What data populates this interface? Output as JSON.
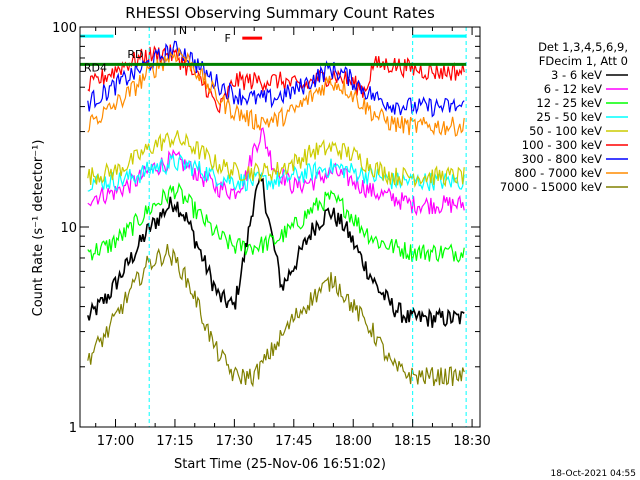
{
  "chart_data": {
    "type": "line",
    "title": "RHESSI Observing Summary Count Rates",
    "xlabel": "Start Time (25-Nov-06 16:51:02)",
    "ylabel": "Count Rate (s⁻¹ detector⁻¹)",
    "y_scale": "log",
    "ylim": [
      1,
      100
    ],
    "xlim": [
      "16:51:02",
      "18:32:00"
    ],
    "x_ticks": [
      "17:00",
      "17:15",
      "17:30",
      "17:45",
      "18:00",
      "18:15",
      "18:30"
    ],
    "y_ticks": [
      "1",
      "10",
      "100"
    ],
    "legend_header": [
      "Det 1,3,4,5,6,9,",
      "FDecim 1, Att 0"
    ],
    "legend_placement": "right",
    "series": [
      {
        "name": "3 - 6 keV",
        "color": "#000000",
        "x": [
          "16:53",
          "16:58",
          "17:03",
          "17:08",
          "17:13",
          "17:15",
          "17:18",
          "17:22",
          "17:26",
          "17:30",
          "17:33",
          "17:35",
          "17:37",
          "17:39",
          "17:42",
          "17:46",
          "17:50",
          "17:54",
          "17:58",
          "18:02",
          "18:06",
          "18:10",
          "18:14",
          "18:19",
          "18:24",
          "18:28"
        ],
        "values": [
          3.5,
          4.5,
          6.5,
          9.5,
          12.5,
          13.5,
          11,
          7,
          4.5,
          4,
          8,
          14,
          17,
          10,
          5,
          7,
          10,
          12,
          10,
          7,
          5,
          4,
          3.5,
          3.5,
          3.5,
          3.5
        ]
      },
      {
        "name": "6 - 12 keV",
        "color": "#ff00ff",
        "x": [
          "16:53",
          "17:00",
          "17:05",
          "17:10",
          "17:15",
          "17:20",
          "17:25",
          "17:30",
          "17:33",
          "17:35",
          "17:37",
          "17:40",
          "17:45",
          "17:50",
          "17:55",
          "18:00",
          "18:05",
          "18:10",
          "18:15",
          "18:20",
          "18:28"
        ],
        "values": [
          14,
          15,
          17,
          20,
          22,
          19,
          16,
          15,
          18,
          25,
          30,
          20,
          16,
          17,
          19,
          17,
          15,
          14,
          13,
          13,
          13
        ]
      },
      {
        "name": "12 - 25 keV",
        "color": "#00ff00",
        "x": [
          "16:53",
          "16:58",
          "17:03",
          "17:08",
          "17:13",
          "17:15",
          "17:18",
          "17:22",
          "17:26",
          "17:30",
          "17:35",
          "17:40",
          "17:45",
          "17:50",
          "17:54",
          "17:58",
          "18:02",
          "18:06",
          "18:10",
          "18:15",
          "18:20",
          "18:28"
        ],
        "values": [
          7.5,
          8,
          9.5,
          12,
          14.5,
          15.5,
          13.5,
          11,
          9,
          8,
          8,
          8.5,
          10,
          12.5,
          14,
          12.5,
          10,
          8.5,
          8,
          7.5,
          7.5,
          7.5
        ]
      },
      {
        "name": "25 - 50 keV",
        "color": "#00ffff",
        "x": [
          "16:53",
          "17:00",
          "17:05",
          "17:10",
          "17:15",
          "17:20",
          "17:25",
          "17:30",
          "17:35",
          "17:40",
          "17:45",
          "17:50",
          "17:55",
          "18:00",
          "18:05",
          "18:10",
          "18:15",
          "18:20",
          "18:28"
        ],
        "values": [
          17,
          17,
          18,
          20,
          21,
          20,
          18,
          17,
          17,
          17,
          18,
          19,
          20,
          19,
          18,
          17,
          17,
          17,
          17
        ]
      },
      {
        "name": "50 - 100 keV",
        "color": "#cccc00",
        "x": [
          "16:53",
          "17:00",
          "17:05",
          "17:10",
          "17:15",
          "17:20",
          "17:25",
          "17:30",
          "17:35",
          "17:40",
          "17:45",
          "17:50",
          "17:55",
          "18:00",
          "18:05",
          "18:10",
          "18:15",
          "18:20",
          "18:28"
        ],
        "values": [
          18,
          19,
          22,
          26,
          28,
          25,
          21,
          19,
          19,
          19,
          21,
          24,
          25,
          23,
          20,
          18,
          18,
          18,
          18
        ]
      },
      {
        "name": "100 - 300 keV",
        "color": "#ff0000",
        "x": [
          "16:53",
          "16:58",
          "17:03",
          "17:08",
          "17:13",
          "17:16",
          "17:19",
          "17:23",
          "17:26",
          "17:30",
          "17:36",
          "17:42",
          "17:47",
          "17:51",
          "17:55",
          "17:59",
          "18:03",
          "18:05",
          "18:10",
          "18:15",
          "18:20",
          "18:28"
        ],
        "values": [
          50,
          58,
          66,
          72,
          75,
          70,
          60,
          50,
          38,
          54,
          54,
          54,
          50,
          55,
          58,
          54,
          48,
          65,
          65,
          62,
          60,
          60
        ]
      },
      {
        "name": "300 - 800 keV",
        "color": "#0000ff",
        "x": [
          "16:53",
          "16:58",
          "17:03",
          "17:08",
          "17:13",
          "17:16",
          "17:19",
          "17:23",
          "17:27",
          "17:30",
          "17:35",
          "17:40",
          "17:45",
          "17:50",
          "17:54",
          "17:58",
          "18:02",
          "18:06",
          "18:10",
          "18:15",
          "18:20",
          "18:28"
        ],
        "values": [
          42,
          48,
          56,
          65,
          75,
          78,
          70,
          58,
          50,
          46,
          44,
          44,
          48,
          55,
          62,
          58,
          50,
          44,
          41,
          40,
          40,
          40
        ]
      },
      {
        "name": "800 - 7000 keV",
        "color": "#ff8c00",
        "x": [
          "16:53",
          "16:58",
          "17:03",
          "17:08",
          "17:13",
          "17:16",
          "17:19",
          "17:23",
          "17:27",
          "17:30",
          "17:35",
          "17:40",
          "17:45",
          "17:50",
          "17:54",
          "17:58",
          "18:02",
          "18:06",
          "18:10",
          "18:15",
          "18:20",
          "18:28"
        ],
        "values": [
          33,
          38,
          46,
          58,
          70,
          75,
          66,
          52,
          42,
          38,
          34,
          34,
          38,
          46,
          54,
          50,
          42,
          36,
          33,
          32,
          32,
          32
        ]
      },
      {
        "name": "7000 - 15000 keV",
        "color": "#808000",
        "x": [
          "16:53",
          "16:58",
          "17:03",
          "17:08",
          "17:13",
          "17:16",
          "17:20",
          "17:25",
          "17:30",
          "17:35",
          "17:40",
          "17:45",
          "17:50",
          "17:55",
          "18:00",
          "18:05",
          "18:10",
          "18:15",
          "18:20",
          "18:28"
        ],
        "values": [
          2.2,
          3,
          4.5,
          6.5,
          7.5,
          6.5,
          4.5,
          2.5,
          1.8,
          1.8,
          2.5,
          3.5,
          4.5,
          5.5,
          4,
          3,
          2,
          1.8,
          1.8,
          1.8
        ]
      }
    ],
    "annotations": {
      "state_labels": [
        "N",
        "RD",
        "RD4",
        "F"
      ],
      "state_bars": [
        {
          "label": "N",
          "color": "#00ffff",
          "start": "16:51:02",
          "end": "16:59:30",
          "level": 90
        },
        {
          "label": "N",
          "color": "#00ffff",
          "start": "18:15:00",
          "end": "18:28:30",
          "level": 90
        },
        {
          "label": "RD",
          "color": "#008000",
          "start": "16:51:02",
          "end": "18:28:30",
          "level": 65
        },
        {
          "label": "F",
          "color": "#ff0000",
          "start": "17:32:00",
          "end": "17:37:00",
          "level": 88
        }
      ],
      "dashed_vertical_times": [
        "16:51:02",
        "17:08:30",
        "18:15:00",
        "18:28:30"
      ]
    }
  },
  "timestamp": "18-Oct-2021 04:55"
}
